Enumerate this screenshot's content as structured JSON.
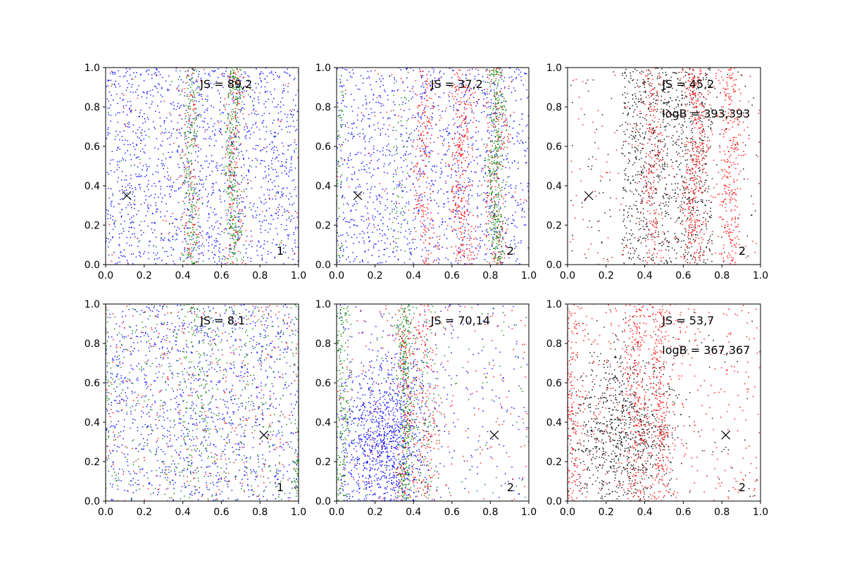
{
  "chart_data": [
    {
      "type": "scatter",
      "panel": "top-left",
      "annotations": [
        "JS = 89,2"
      ],
      "corner_label": "1",
      "xlim": [
        0,
        1
      ],
      "ylim": [
        0,
        1
      ],
      "xticks": [
        "0.0",
        "0.2",
        "0.4",
        "0.6",
        "0.8",
        "1.0"
      ],
      "yticks": [
        "0.0",
        "0.2",
        "0.4",
        "0.6",
        "0.8",
        "1.0"
      ],
      "marker": {
        "x": 0.11,
        "y": 0.35
      },
      "point_colors": {
        "blue": "#0000ff",
        "red": "#ff0000",
        "green": "#008000",
        "black": "#000000"
      },
      "series_layout": [
        {
          "color": "blue",
          "kind": "uniform",
          "count": 1500
        },
        {
          "color": "green",
          "kind": "band",
          "center": 0.44,
          "width": 0.02,
          "count": 220
        },
        {
          "color": "green",
          "kind": "band",
          "center": 0.66,
          "width": 0.022,
          "count": 300
        },
        {
          "color": "red",
          "kind": "band",
          "center": 0.44,
          "width": 0.025,
          "count": 120
        },
        {
          "color": "red",
          "kind": "band",
          "center": 0.66,
          "width": 0.025,
          "count": 160
        },
        {
          "color": "red",
          "kind": "uniform",
          "count": 80
        },
        {
          "color": "green",
          "kind": "uniform",
          "count": 60
        }
      ]
    },
    {
      "type": "scatter",
      "panel": "top-middle",
      "annotations": [
        "JS = 37,2"
      ],
      "corner_label": "2",
      "xlim": [
        0,
        1
      ],
      "ylim": [
        0,
        1
      ],
      "xticks": [
        "0.0",
        "0.2",
        "0.4",
        "0.6",
        "0.8",
        "1.0"
      ],
      "yticks": [
        "0.0",
        "0.2",
        "0.4",
        "0.6",
        "0.8",
        "1.0"
      ],
      "marker": {
        "x": 0.11,
        "y": 0.35
      },
      "point_colors": {
        "blue": "#0000ff",
        "red": "#ff0000",
        "green": "#008000",
        "black": "#000000"
      },
      "series_layout": [
        {
          "color": "blue",
          "kind": "uniform",
          "count": 1300
        },
        {
          "color": "red",
          "kind": "band",
          "center": 0.45,
          "width": 0.03,
          "count": 200
        },
        {
          "color": "red",
          "kind": "band",
          "center": 0.65,
          "width": 0.03,
          "count": 330
        },
        {
          "color": "red",
          "kind": "band",
          "center": 0.83,
          "width": 0.03,
          "count": 200
        },
        {
          "color": "green",
          "kind": "band",
          "center": 0.83,
          "width": 0.022,
          "count": 360
        },
        {
          "color": "green",
          "kind": "band",
          "center": 0.33,
          "width": 0.03,
          "count": 60
        },
        {
          "color": "green",
          "kind": "band",
          "center": 0.01,
          "width": 0.015,
          "count": 70
        },
        {
          "color": "red",
          "kind": "uniform",
          "count": 80
        }
      ]
    },
    {
      "type": "scatter",
      "panel": "top-right",
      "annotations": [
        "JS = 45,2",
        "logB = 393,393"
      ],
      "corner_label": "2",
      "xlim": [
        0,
        1
      ],
      "ylim": [
        0,
        1
      ],
      "xticks": [
        "0.0",
        "0.2",
        "0.4",
        "0.6",
        "0.8",
        "1.0"
      ],
      "yticks": [
        "0.0",
        "0.2",
        "0.4",
        "0.6",
        "0.8",
        "1.0"
      ],
      "marker": {
        "x": 0.11,
        "y": 0.35
      },
      "point_colors": {
        "blue": "#0000ff",
        "red": "#ff0000",
        "green": "#008000",
        "black": "#000000"
      },
      "series_layout": [
        {
          "color": "black",
          "kind": "range",
          "xmin": 0.28,
          "xmax": 0.75,
          "count": 900
        },
        {
          "color": "black",
          "kind": "uniform",
          "count": 150
        },
        {
          "color": "red",
          "kind": "band",
          "center": 0.44,
          "width": 0.03,
          "count": 220
        },
        {
          "color": "red",
          "kind": "band",
          "center": 0.66,
          "width": 0.03,
          "count": 380
        },
        {
          "color": "red",
          "kind": "band",
          "center": 0.84,
          "width": 0.03,
          "count": 280
        },
        {
          "color": "red",
          "kind": "uniform",
          "count": 200
        }
      ]
    },
    {
      "type": "scatter",
      "panel": "bottom-left",
      "annotations": [
        "JS = 8,1"
      ],
      "corner_label": "1",
      "xlim": [
        0,
        1
      ],
      "ylim": [
        0,
        1
      ],
      "xticks": [
        "0.0",
        "0.2",
        "0.4",
        "0.6",
        "0.8",
        "1.0"
      ],
      "yticks": [
        "0.0",
        "0.2",
        "0.4",
        "0.6",
        "0.8",
        "1.0"
      ],
      "marker": {
        "x": 0.82,
        "y": 0.335
      },
      "point_colors": {
        "blue": "#0000ff",
        "red": "#ff0000",
        "green": "#008000",
        "black": "#000000"
      },
      "series_layout": [
        {
          "color": "blue",
          "kind": "uniform",
          "count": 1200
        },
        {
          "color": "green",
          "kind": "uniform",
          "count": 450
        },
        {
          "color": "red",
          "kind": "uniform",
          "count": 300
        },
        {
          "color": "green",
          "kind": "band",
          "center": 0.0,
          "width": 0.012,
          "count": 60
        },
        {
          "color": "green",
          "kind": "band",
          "center": 1.0,
          "width": 0.012,
          "count": 60
        },
        {
          "color": "green",
          "kind": "band",
          "center": 0.47,
          "width": 0.05,
          "count": 100
        }
      ]
    },
    {
      "type": "scatter",
      "panel": "bottom-middle",
      "annotations": [
        "JS = 70,14"
      ],
      "corner_label": "2",
      "xlim": [
        0,
        1
      ],
      "ylim": [
        0,
        1
      ],
      "xticks": [
        "0.0",
        "0.2",
        "0.4",
        "0.6",
        "0.8",
        "1.0"
      ],
      "yticks": [
        "0.0",
        "0.2",
        "0.4",
        "0.6",
        "0.8",
        "1.0"
      ],
      "marker": {
        "x": 0.82,
        "y": 0.335
      },
      "point_colors": {
        "blue": "#0000ff",
        "red": "#ff0000",
        "green": "#008000",
        "black": "#000000"
      },
      "series_layout": [
        {
          "color": "blue",
          "kind": "blob",
          "cx": 0.25,
          "cy": 0.3,
          "sx": 0.12,
          "sy": 0.22,
          "count": 1100
        },
        {
          "color": "blue",
          "kind": "uniform",
          "count": 300
        },
        {
          "color": "green",
          "kind": "band",
          "center": 0.36,
          "width": 0.02,
          "count": 320
        },
        {
          "color": "green",
          "kind": "band",
          "center": 0.03,
          "width": 0.025,
          "count": 220
        },
        {
          "color": "green",
          "kind": "band",
          "center": 0.47,
          "width": 0.03,
          "count": 80
        },
        {
          "color": "red",
          "kind": "band",
          "center": 0.36,
          "width": 0.03,
          "count": 160
        },
        {
          "color": "red",
          "kind": "band",
          "center": 0.47,
          "width": 0.03,
          "count": 160
        },
        {
          "color": "red",
          "kind": "uniform",
          "count": 180
        },
        {
          "color": "green",
          "kind": "uniform",
          "count": 90
        }
      ]
    },
    {
      "type": "scatter",
      "panel": "bottom-right",
      "annotations": [
        "JS = 53,7",
        "logB = 367,367"
      ],
      "corner_label": "2",
      "xlim": [
        0,
        1
      ],
      "ylim": [
        0,
        1
      ],
      "xticks": [
        "0.0",
        "0.2",
        "0.4",
        "0.6",
        "0.8",
        "1.0"
      ],
      "yticks": [
        "0.0",
        "0.2",
        "0.4",
        "0.6",
        "0.8",
        "1.0"
      ],
      "marker": {
        "x": 0.82,
        "y": 0.335
      },
      "point_colors": {
        "blue": "#0000ff",
        "red": "#ff0000",
        "green": "#008000",
        "black": "#000000"
      },
      "series_layout": [
        {
          "color": "black",
          "kind": "blob",
          "cx": 0.28,
          "cy": 0.33,
          "sx": 0.14,
          "sy": 0.22,
          "count": 900
        },
        {
          "color": "red",
          "kind": "band",
          "center": 0.02,
          "width": 0.03,
          "count": 200
        },
        {
          "color": "red",
          "kind": "band",
          "center": 0.36,
          "width": 0.03,
          "count": 250
        },
        {
          "color": "red",
          "kind": "band",
          "center": 0.48,
          "width": 0.025,
          "count": 250
        },
        {
          "color": "red",
          "kind": "uniform",
          "count": 450
        },
        {
          "color": "black",
          "kind": "uniform",
          "count": 60
        }
      ]
    }
  ]
}
